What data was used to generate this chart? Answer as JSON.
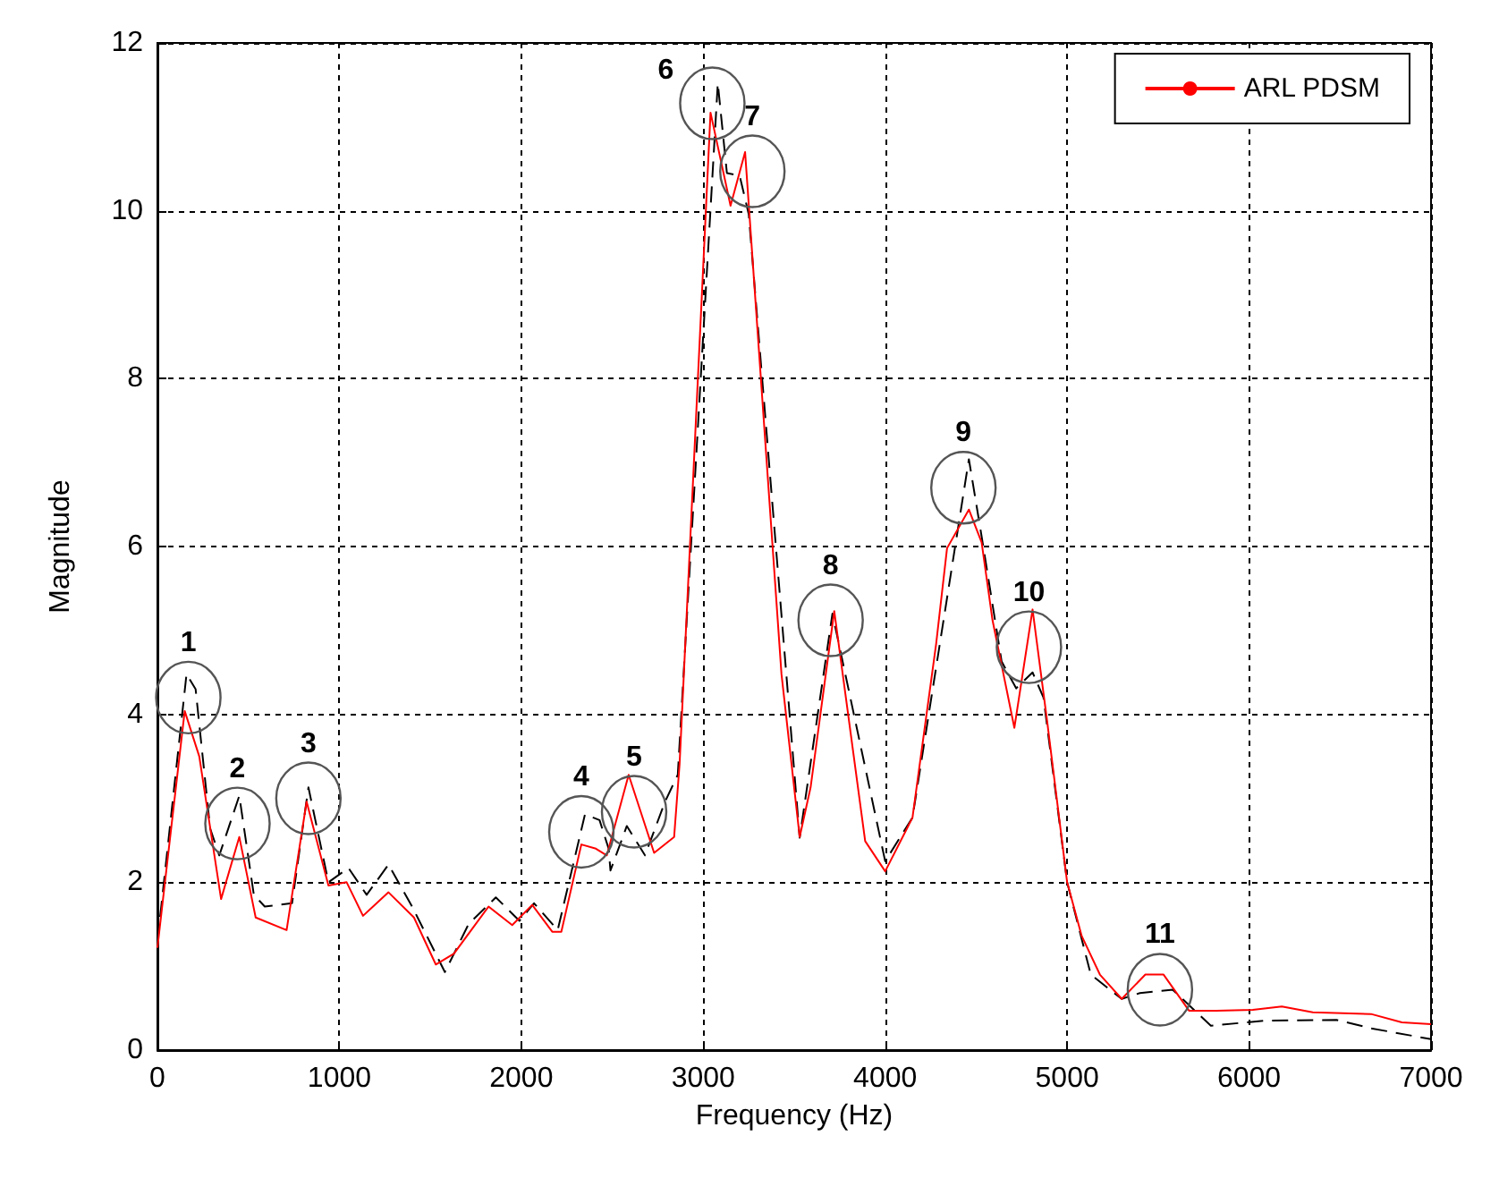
{
  "chart_data": {
    "type": "line",
    "xlabel": "Frequency (Hz)",
    "ylabel": "Magnitude",
    "xlim": [
      0,
      7000
    ],
    "xticks": [
      0,
      1000,
      2000,
      3000,
      4000,
      5000,
      6000,
      7000
    ],
    "ylim": [
      0,
      12
    ],
    "yticks": [
      0,
      2,
      4,
      6,
      8,
      10,
      12
    ],
    "grid": true,
    "legend": "top right",
    "marker": "none",
    "series": [
      {
        "name": "ARL PDSM",
        "color": "#ff0000",
        "line_style": "solid",
        "x": [
          0,
          150,
          230,
          350,
          450,
          540,
          710,
          820,
          940,
          1040,
          1130,
          1270,
          1410,
          1530,
          1630,
          1820,
          1950,
          2060,
          2170,
          2220,
          2330,
          2410,
          2470,
          2590,
          2730,
          2840,
          2870,
          3040,
          3150,
          3230,
          3430,
          3530,
          3590,
          3720,
          3890,
          4000,
          4150,
          4280,
          4340,
          4460,
          4530,
          4590,
          4710,
          4810,
          4890,
          5000,
          5080,
          5180,
          5300,
          5430,
          5530,
          5670,
          5820,
          6020,
          6180,
          6350,
          6670,
          6840,
          7000
        ],
        "values": [
          1.22,
          4.04,
          3.5,
          1.8,
          2.54,
          1.58,
          1.43,
          2.96,
          1.96,
          2.0,
          1.6,
          1.88,
          1.58,
          1.02,
          1.15,
          1.71,
          1.49,
          1.73,
          1.41,
          1.41,
          2.45,
          2.4,
          2.32,
          3.28,
          2.35,
          2.54,
          3.41,
          11.17,
          10.06,
          10.7,
          4.48,
          2.54,
          3.13,
          5.23,
          2.49,
          2.13,
          2.77,
          4.84,
          5.98,
          6.44,
          6.05,
          5.12,
          3.84,
          5.25,
          3.92,
          2.0,
          1.36,
          0.9,
          0.61,
          0.9,
          0.9,
          0.47,
          0.47,
          0.48,
          0.52,
          0.45,
          0.43,
          0.33,
          0.31
        ]
      },
      {
        "color": "#000000",
        "line_style": "dashed",
        "x": [
          0,
          160,
          210,
          290,
          340,
          450,
          530,
          590,
          740,
          830,
          940,
          1050,
          1150,
          1270,
          1400,
          1580,
          1710,
          1860,
          1990,
          2070,
          2200,
          2350,
          2430,
          2480,
          2490,
          2580,
          2680,
          2790,
          2860,
          3080,
          3130,
          3200,
          3250,
          3530,
          3710,
          4000,
          4150,
          4460,
          4530,
          4640,
          4720,
          4810,
          4870,
          5000,
          5130,
          5300,
          5400,
          5580,
          5790,
          6080,
          6480,
          6670,
          7000
        ],
        "values": [
          1.29,
          4.48,
          4.3,
          2.64,
          2.32,
          3.03,
          1.85,
          1.71,
          1.75,
          3.13,
          2.0,
          2.17,
          1.85,
          2.21,
          1.71,
          0.93,
          1.5,
          1.82,
          1.54,
          1.75,
          1.43,
          2.81,
          2.74,
          2.4,
          2.14,
          2.67,
          2.32,
          2.96,
          3.28,
          11.52,
          10.45,
          10.42,
          9.96,
          2.53,
          5.2,
          2.25,
          2.77,
          7.04,
          6.12,
          4.63,
          4.31,
          4.5,
          4.2,
          2.0,
          0.9,
          0.61,
          0.68,
          0.72,
          0.29,
          0.35,
          0.36,
          0.26,
          0.13
        ]
      }
    ],
    "annotations": [
      {
        "text": "1",
        "x": 170,
        "y": 4.2
      },
      {
        "text": "2",
        "x": 440,
        "y": 2.7
      },
      {
        "text": "3",
        "x": 830,
        "y": 3.0
      },
      {
        "text": "4",
        "x": 2330,
        "y": 2.6
      },
      {
        "text": "5",
        "x": 2620,
        "y": 2.84
      },
      {
        "text": "6",
        "x": 3050,
        "y": 11.28
      },
      {
        "text": "7",
        "x": 3270,
        "y": 10.47
      },
      {
        "text": "8",
        "x": 3700,
        "y": 5.12
      },
      {
        "text": "9",
        "x": 4430,
        "y": 6.7
      },
      {
        "text": "10",
        "x": 4790,
        "y": 4.8
      },
      {
        "text": "11",
        "x": 5510,
        "y": 0.72
      }
    ]
  }
}
